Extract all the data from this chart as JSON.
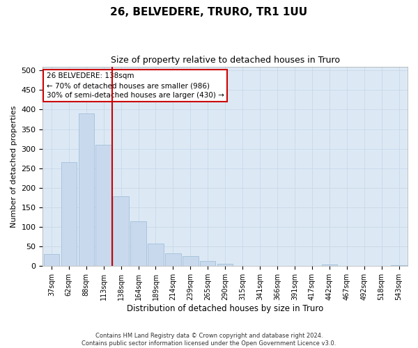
{
  "title": "26, BELVEDERE, TRURO, TR1 1UU",
  "subtitle": "Size of property relative to detached houses in Truro",
  "xlabel": "Distribution of detached houses by size in Truro",
  "ylabel": "Number of detached properties",
  "footer_line1": "Contains HM Land Registry data © Crown copyright and database right 2024.",
  "footer_line2": "Contains public sector information licensed under the Open Government Licence v3.0.",
  "annotation_title": "26 BELVEDERE: 138sqm",
  "annotation_line1": "← 70% of detached houses are smaller (986)",
  "annotation_line2": "30% of semi-detached houses are larger (430) →",
  "categories": [
    "37sqm",
    "62sqm",
    "88sqm",
    "113sqm",
    "138sqm",
    "164sqm",
    "189sqm",
    "214sqm",
    "239sqm",
    "265sqm",
    "290sqm",
    "315sqm",
    "341sqm",
    "366sqm",
    "391sqm",
    "417sqm",
    "442sqm",
    "467sqm",
    "492sqm",
    "518sqm",
    "543sqm"
  ],
  "values": [
    30,
    265,
    390,
    310,
    178,
    115,
    57,
    32,
    25,
    13,
    6,
    0,
    0,
    0,
    0,
    0,
    5,
    0,
    0,
    0,
    3
  ],
  "bar_color": "#c9d9ed",
  "bar_edge_color": "#a8c4dc",
  "marker_color": "#cc0000",
  "annotation_box_color": "#cc0000",
  "grid_color": "#c8d8e8",
  "fig_background": "#ffffff",
  "plot_background": "#dce9f5",
  "ylim": [
    0,
    510
  ],
  "yticks": [
    0,
    50,
    100,
    150,
    200,
    250,
    300,
    350,
    400,
    450,
    500
  ],
  "title_fontsize": 11,
  "subtitle_fontsize": 9
}
